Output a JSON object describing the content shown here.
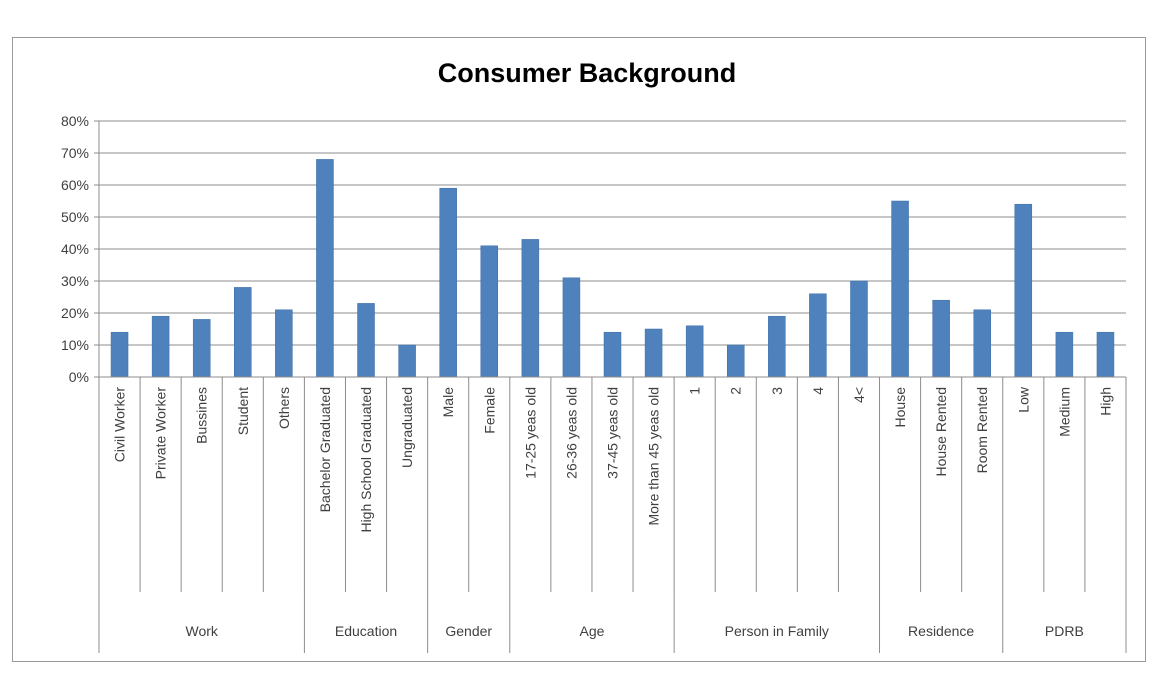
{
  "chart_data": {
    "type": "bar",
    "title": "Consumer Background",
    "xlabel": "",
    "ylabel": "",
    "ylim": [
      0,
      80
    ],
    "y_ticks": [
      "0%",
      "10%",
      "20%",
      "30%",
      "40%",
      "50%",
      "60%",
      "70%",
      "80%"
    ],
    "grid": true,
    "legend": "none",
    "colors": {
      "bar": "#4f81bd",
      "grid": "#8c8c8c",
      "text": "#404040"
    },
    "categories": [
      "Civil Worker",
      "Private Worker",
      "Bussines",
      "Student",
      "Others",
      "Bachelor Graduated",
      "High School Graduated",
      "Ungraduated",
      "Male",
      "Female",
      "17-25 yeas old",
      "26-36 yeas old",
      "37-45 yeas old",
      "More than 45 yeas old",
      "1",
      "2",
      "3",
      "4",
      "4<",
      "House",
      "House Rented",
      "Room Rented",
      "Low",
      "Medium",
      "High"
    ],
    "values": [
      14,
      19,
      18,
      28,
      21,
      68,
      23,
      10,
      59,
      41,
      43,
      31,
      14,
      15,
      16,
      10,
      19,
      26,
      30,
      55,
      24,
      21,
      54,
      14,
      14
    ],
    "groups": [
      {
        "name": "Work",
        "count": 5
      },
      {
        "name": "Education",
        "count": 3
      },
      {
        "name": "Gender",
        "count": 2
      },
      {
        "name": "Age",
        "count": 4
      },
      {
        "name": "Person in Family",
        "count": 5
      },
      {
        "name": "Residence",
        "count": 3
      },
      {
        "name": "PDRB",
        "count": 3
      }
    ]
  }
}
